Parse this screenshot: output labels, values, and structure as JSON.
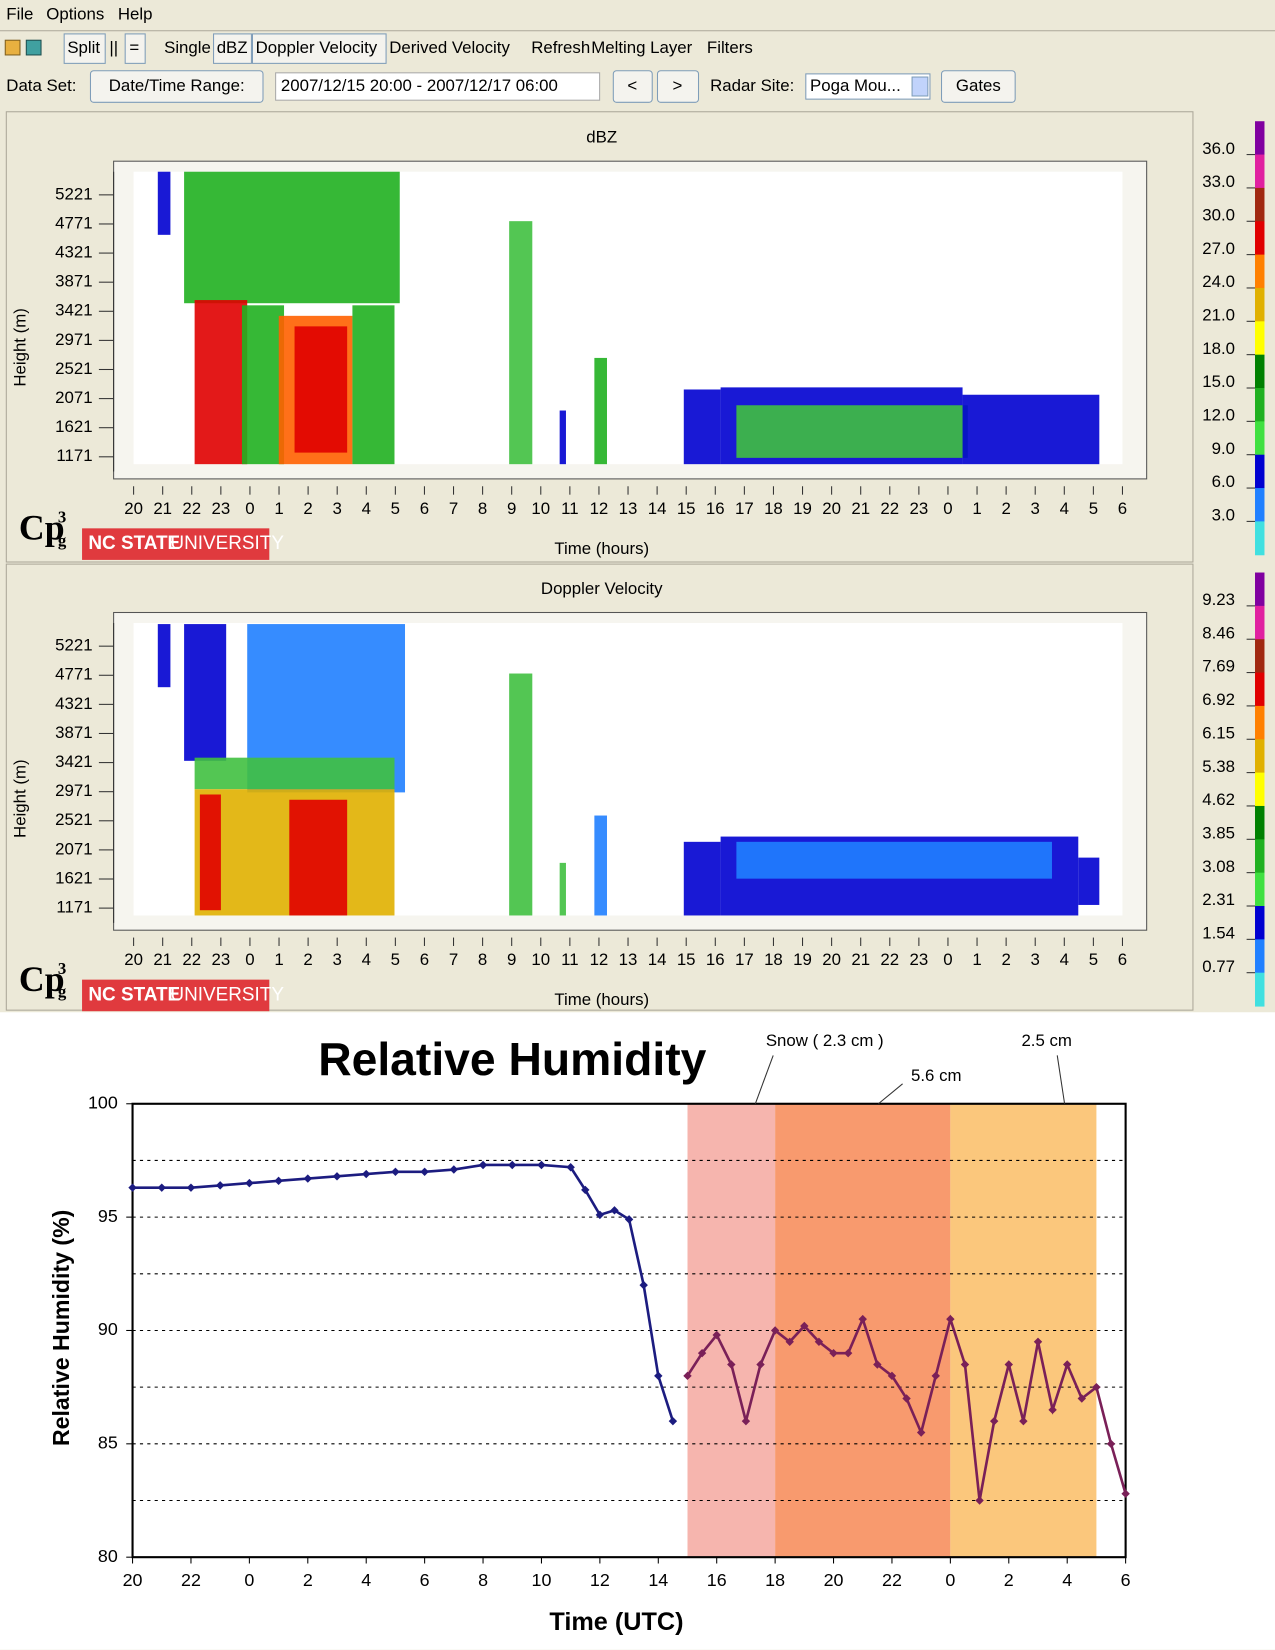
{
  "menu": [
    "File",
    "Options",
    "Help"
  ],
  "toolbar": [
    "Split",
    "||",
    "=",
    "Single",
    "dBZ",
    "Doppler Velocity",
    "Derived Velocity",
    "Refresh",
    "Melting Layer",
    "Filters"
  ],
  "dataset": {
    "label": "Data Set:",
    "range_button": "Date/Time Range:",
    "range": "2007/12/15 20:00 - 2007/12/17 06:00",
    "prev": "<",
    "next": ">",
    "radar_label": "Radar Site:",
    "radar_value": "Poga Mou...",
    "gates": "Gates"
  },
  "panels": [
    {
      "title": "dBZ",
      "y_label": "Height (m)",
      "x_label": "Time (hours)",
      "yticks": [
        5221,
        4771,
        4321,
        3871,
        3421,
        2971,
        2521,
        2071,
        1621,
        1171
      ],
      "x_labels": [
        "20",
        "21",
        "22",
        "23",
        "0",
        "1",
        "2",
        "3",
        "4",
        "5",
        "6",
        "7",
        "8",
        "9",
        "10",
        "11",
        "12",
        "13",
        "14",
        "15",
        "16",
        "17",
        "18",
        "19",
        "20",
        "21",
        "22",
        "23",
        "0",
        "1",
        "2",
        "3",
        "4",
        "5",
        "6"
      ],
      "colorbar": [
        {
          "value": 36,
          "label": "36.0"
        },
        {
          "value": 33,
          "label": "33.0"
        },
        {
          "value": 30,
          "label": "30.0"
        },
        {
          "value": 27,
          "label": "27.0"
        },
        {
          "value": 24,
          "label": "24.0"
        },
        {
          "value": 21,
          "label": "21.0"
        },
        {
          "value": 18,
          "label": "18.0"
        },
        {
          "value": 15,
          "label": "15.0"
        },
        {
          "value": 12,
          "label": "12.0"
        },
        {
          "value": 9,
          "label": "9.0"
        },
        {
          "value": 6,
          "label": "6.0"
        },
        {
          "value": 3,
          "label": "3.0"
        }
      ],
      "colors": [
        "#8000a0",
        "#e020a0",
        "#a02810",
        "#e00000",
        "#ff8000",
        "#e0b000",
        "#ffff00",
        "#008000",
        "#20b020",
        "#40e040",
        "#0000d0",
        "#2080ff",
        "#40e0e0"
      ]
    },
    {
      "title": "Doppler Velocity",
      "y_label": "Height (m)",
      "x_label": "Time (hours)",
      "yticks": [
        5221,
        4771,
        4321,
        3871,
        3421,
        2971,
        2521,
        2071,
        1621,
        1171
      ],
      "x_labels": [
        "20",
        "21",
        "22",
        "23",
        "0",
        "1",
        "2",
        "3",
        "4",
        "5",
        "6",
        "7",
        "8",
        "9",
        "10",
        "11",
        "12",
        "13",
        "14",
        "15",
        "16",
        "17",
        "18",
        "19",
        "20",
        "21",
        "22",
        "23",
        "0",
        "1",
        "2",
        "3",
        "4",
        "5",
        "6"
      ],
      "colorbar": [
        {
          "value": 9.23,
          "label": "9.23"
        },
        {
          "value": 8.46,
          "label": "8.46"
        },
        {
          "value": 7.69,
          "label": "7.69"
        },
        {
          "value": 6.92,
          "label": "6.92"
        },
        {
          "value": 6.15,
          "label": "6.15"
        },
        {
          "value": 5.38,
          "label": "5.38"
        },
        {
          "value": 4.62,
          "label": "4.62"
        },
        {
          "value": 3.85,
          "label": "3.85"
        },
        {
          "value": 3.08,
          "label": "3.08"
        },
        {
          "value": 2.31,
          "label": "2.31"
        },
        {
          "value": 1.54,
          "label": "1.54"
        },
        {
          "value": 0.77,
          "label": "0.77"
        }
      ],
      "colors": [
        "#8000a0",
        "#e020a0",
        "#a02810",
        "#e00000",
        "#ff8000",
        "#e0b000",
        "#ffff00",
        "#008000",
        "#20b020",
        "#40e040",
        "#0000d0",
        "#2080ff",
        "#40e0e0"
      ]
    }
  ],
  "logo": {
    "cp": "Cp",
    "sup": "3",
    "sub": "g",
    "school": "NC STATE",
    "school2": "UNIVERSITY"
  },
  "chart_data": {
    "type": "scatter",
    "title": "Relative Humidity",
    "x_label": "Time (UTC)",
    "y_label": "Relative Humidity (%)",
    "xlim": [
      0,
      34
    ],
    "xticks": [
      {
        "value": 0,
        "label": "20"
      },
      {
        "value": 2,
        "label": "22"
      },
      {
        "value": 4,
        "label": "0"
      },
      {
        "value": 6,
        "label": "2"
      },
      {
        "value": 8,
        "label": "4"
      },
      {
        "value": 10,
        "label": "6"
      },
      {
        "value": 12,
        "label": "8"
      },
      {
        "value": 14,
        "label": "10"
      },
      {
        "value": 16,
        "label": "12"
      },
      {
        "value": 18,
        "label": "14"
      },
      {
        "value": 20,
        "label": "16"
      },
      {
        "value": 22,
        "label": "18"
      },
      {
        "value": 24,
        "label": "20"
      },
      {
        "value": 26,
        "label": "22"
      },
      {
        "value": 28,
        "label": "0"
      },
      {
        "value": 30,
        "label": "2"
      },
      {
        "value": 32,
        "label": "4"
      },
      {
        "value": 34,
        "label": "6"
      }
    ],
    "ylim": [
      80,
      100
    ],
    "yticks": [
      80,
      85,
      90,
      95,
      100
    ],
    "grid_lines": [
      82.5,
      85,
      87.5,
      90,
      92.5,
      95,
      97.5
    ],
    "bands": [
      {
        "x": [
          19,
          22
        ],
        "color": "#f6b5ae"
      },
      {
        "x": [
          22,
          28
        ],
        "color": "#f89a6e"
      },
      {
        "x": [
          28,
          33
        ],
        "color": "#fbc77c"
      }
    ],
    "annotations": [
      {
        "text": "Snow ( 2.3 cm )",
        "x": 21
      },
      {
        "text": "5.6 cm",
        "x": 25
      },
      {
        "text": "2.5 cm",
        "x": 32
      }
    ],
    "series": [
      {
        "color": "#1c1c80",
        "x": [
          0,
          1,
          2,
          3,
          4,
          5,
          6,
          7,
          8,
          9,
          10,
          11,
          12,
          13,
          14,
          15,
          15.5,
          16,
          16.5,
          17,
          17.5,
          18,
          18.5
        ],
        "values": [
          96.3,
          96.3,
          96.3,
          96.4,
          96.5,
          96.6,
          96.7,
          96.8,
          96.9,
          97,
          97,
          97.1,
          97.3,
          97.3,
          97.3,
          97.2,
          96.2,
          95.1,
          95.3,
          94.9,
          92,
          88,
          86
        ]
      },
      {
        "color": "#7a2058",
        "x": [
          19,
          19.5,
          20,
          20.5,
          21,
          21.5,
          22,
          22.5,
          23,
          23.5,
          24,
          24.5,
          25,
          25.5,
          26,
          26.5,
          27,
          27.5,
          28,
          28.5,
          29,
          29.5,
          30,
          30.5,
          31,
          31.5,
          32,
          32.5,
          33,
          33.5,
          34
        ],
        "values": [
          88,
          89,
          89.8,
          88.5,
          86,
          88.5,
          90,
          89.5,
          90.2,
          89.5,
          89,
          89,
          90.5,
          88.5,
          88,
          87,
          85.5,
          88,
          90.5,
          88.5,
          82.5,
          86,
          88.5,
          86,
          89.5,
          86.5,
          88.5,
          87,
          87.5,
          85,
          82.8
        ]
      }
    ]
  }
}
